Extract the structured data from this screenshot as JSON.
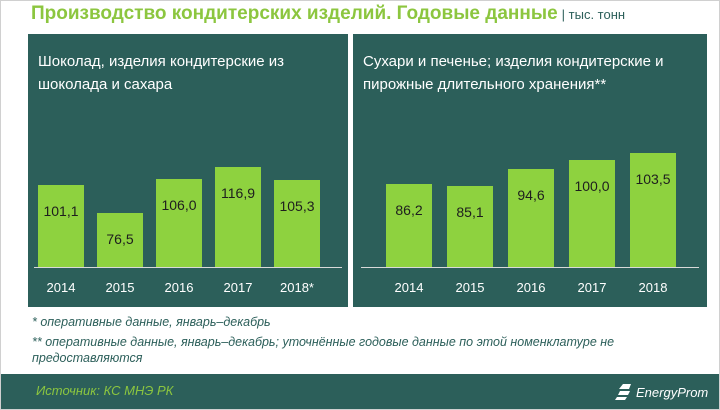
{
  "header": {
    "title": "Производство кондитерских изделий. Годовые данные",
    "unit": "| тыс. тонн"
  },
  "colors": {
    "panel": "#2c5f5a",
    "bar": "#8ed23f",
    "title": "#8cc63f"
  },
  "chart_data": [
    {
      "type": "bar",
      "title": "Шоколад, изделия кондитерские из шоколада и сахара",
      "categories": [
        "2014",
        "2015",
        "2016",
        "2017",
        "2018*"
      ],
      "values": [
        101.1,
        76.5,
        106.0,
        116.9,
        105.3
      ],
      "value_labels": [
        "101,1",
        "76,5",
        "106,0",
        "116,9",
        "105,3"
      ],
      "grid": false
    },
    {
      "type": "bar",
      "title": "Сухари и печенье; изделия кондитерские и пирожные длительного хранения**",
      "categories": [
        "2014",
        "2015",
        "2016",
        "2017",
        "2018"
      ],
      "values": [
        86.2,
        85.1,
        94.6,
        100.0,
        103.5
      ],
      "value_labels": [
        "86,2",
        "85,1",
        "94,6",
        "100,0",
        "103,5"
      ],
      "grid": false
    }
  ],
  "footnotes": [
    "* оперативные данные, январь–декабрь",
    "** оперативные данные, январь–декабрь; уточнённые годовые данные по этой номенклатуре не предоставляются"
  ],
  "source": "Источник: КС МНЭ РК",
  "logo": {
    "text": "EnergyProm",
    "icon": "energyprom-logo-icon"
  }
}
